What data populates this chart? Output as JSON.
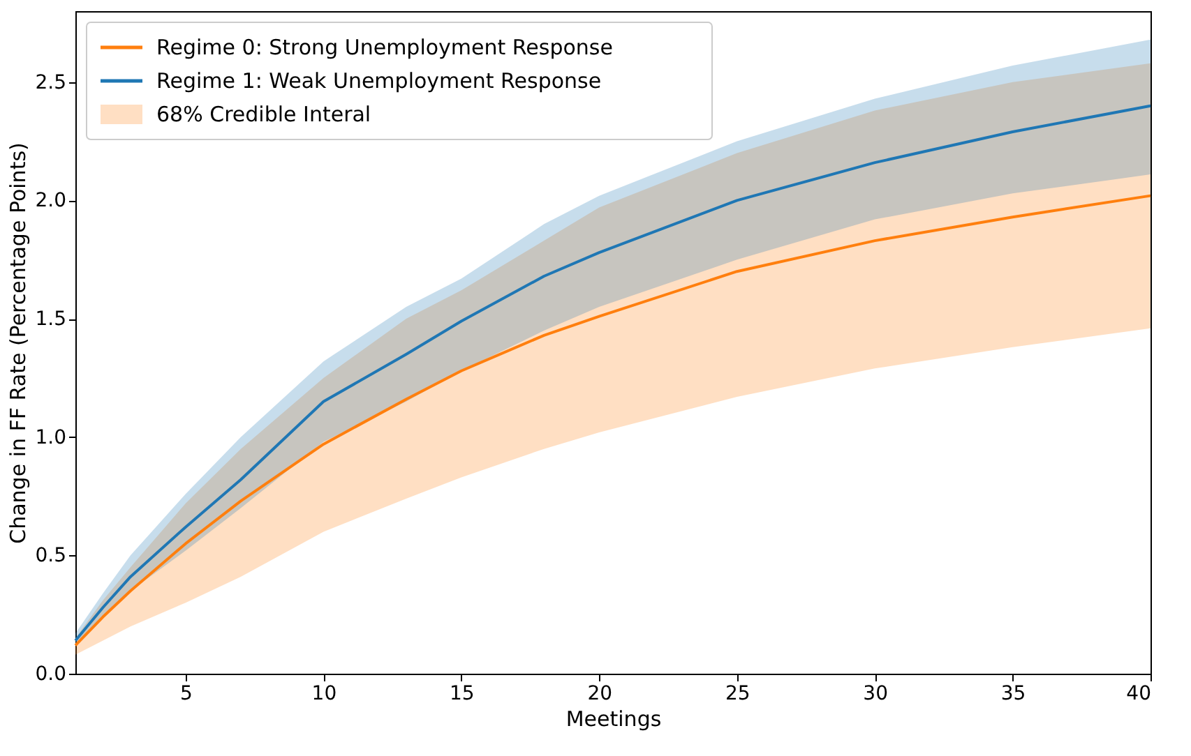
{
  "chart_data": {
    "type": "line",
    "xlabel": "Meetings",
    "ylabel": "Change in FF Rate (Percentage Points)",
    "x": [
      1,
      2,
      3,
      5,
      7,
      10,
      13,
      15,
      18,
      20,
      25,
      30,
      35,
      40
    ],
    "series": [
      {
        "name": "Regime 0: Strong Unemployment Response",
        "color": "#ff7f0e",
        "values": [
          0.12,
          0.24,
          0.35,
          0.55,
          0.73,
          0.97,
          1.16,
          1.28,
          1.43,
          1.51,
          1.7,
          1.83,
          1.93,
          2.02
        ],
        "lower": [
          0.08,
          0.14,
          0.2,
          0.3,
          0.41,
          0.6,
          0.74,
          0.83,
          0.95,
          1.02,
          1.17,
          1.29,
          1.38,
          1.46
        ],
        "upper": [
          0.15,
          0.31,
          0.45,
          0.72,
          0.95,
          1.25,
          1.5,
          1.62,
          1.83,
          1.97,
          2.2,
          2.38,
          2.5,
          2.58
        ]
      },
      {
        "name": "Regime 1: Weak Unemployment Response",
        "color": "#1f77b4",
        "values": [
          0.14,
          0.28,
          0.41,
          0.62,
          0.82,
          1.15,
          1.35,
          1.49,
          1.68,
          1.78,
          2.0,
          2.16,
          2.29,
          2.4
        ],
        "lower": [
          0.12,
          0.24,
          0.35,
          0.52,
          0.7,
          0.98,
          1.15,
          1.28,
          1.45,
          1.55,
          1.75,
          1.92,
          2.03,
          2.11
        ],
        "upper": [
          0.17,
          0.34,
          0.5,
          0.76,
          1.0,
          1.32,
          1.55,
          1.67,
          1.9,
          2.02,
          2.25,
          2.43,
          2.57,
          2.68
        ]
      }
    ],
    "annotations": [
      "68% Credible Interal"
    ],
    "xlim": [
      1,
      40
    ],
    "xticks": [
      5,
      10,
      15,
      20,
      25,
      30,
      35,
      40
    ],
    "ylim": [
      0,
      2.8
    ],
    "yticks": [
      {
        "value": 0,
        "label": "0.0"
      },
      0.5,
      {
        "value": 1,
        "label": "1.0"
      },
      1.5,
      {
        "value": 2,
        "label": "2.0"
      },
      2.5
    ],
    "grid": false,
    "legend": "top left",
    "marker": "none",
    "line_style": "solid"
  }
}
